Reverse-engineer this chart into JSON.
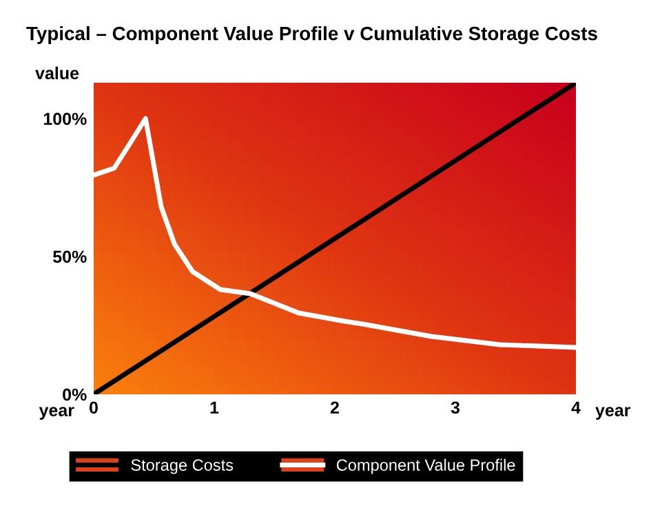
{
  "chart_data": {
    "type": "line",
    "title": "Typical – Component Value Profile v Cumulative Storage Costs",
    "ylabel": "value",
    "xlabel": "year",
    "annotations": [
      "year"
    ],
    "xlim": [
      0,
      4
    ],
    "ylim": [
      0,
      113
    ],
    "xticks": [
      0,
      1,
      2,
      3,
      4
    ],
    "yticks": [
      {
        "value": 0,
        "label": "0%"
      },
      {
        "value": 50,
        "label": "50%"
      },
      {
        "value": 100,
        "label": "100%"
      }
    ],
    "series": [
      {
        "name": "Storage Costs",
        "color": "#000000",
        "x": [
          0,
          4
        ],
        "values": [
          0,
          113
        ]
      },
      {
        "name": "Component Value Profile",
        "color": "#ffffff",
        "x": [
          0,
          0.17,
          0.33,
          0.43,
          0.56,
          0.67,
          0.82,
          1.05,
          1.3,
          1.7,
          2.08,
          2.23,
          2.8,
          3.37,
          4.0
        ],
        "values": [
          79.5,
          82,
          93,
          100,
          68,
          54.5,
          44.5,
          38,
          36.5,
          29.5,
          26.5,
          25.5,
          21,
          18,
          17
        ]
      }
    ],
    "grid": false,
    "legend": "bottom",
    "marker": "none",
    "line_style": "solid"
  }
}
